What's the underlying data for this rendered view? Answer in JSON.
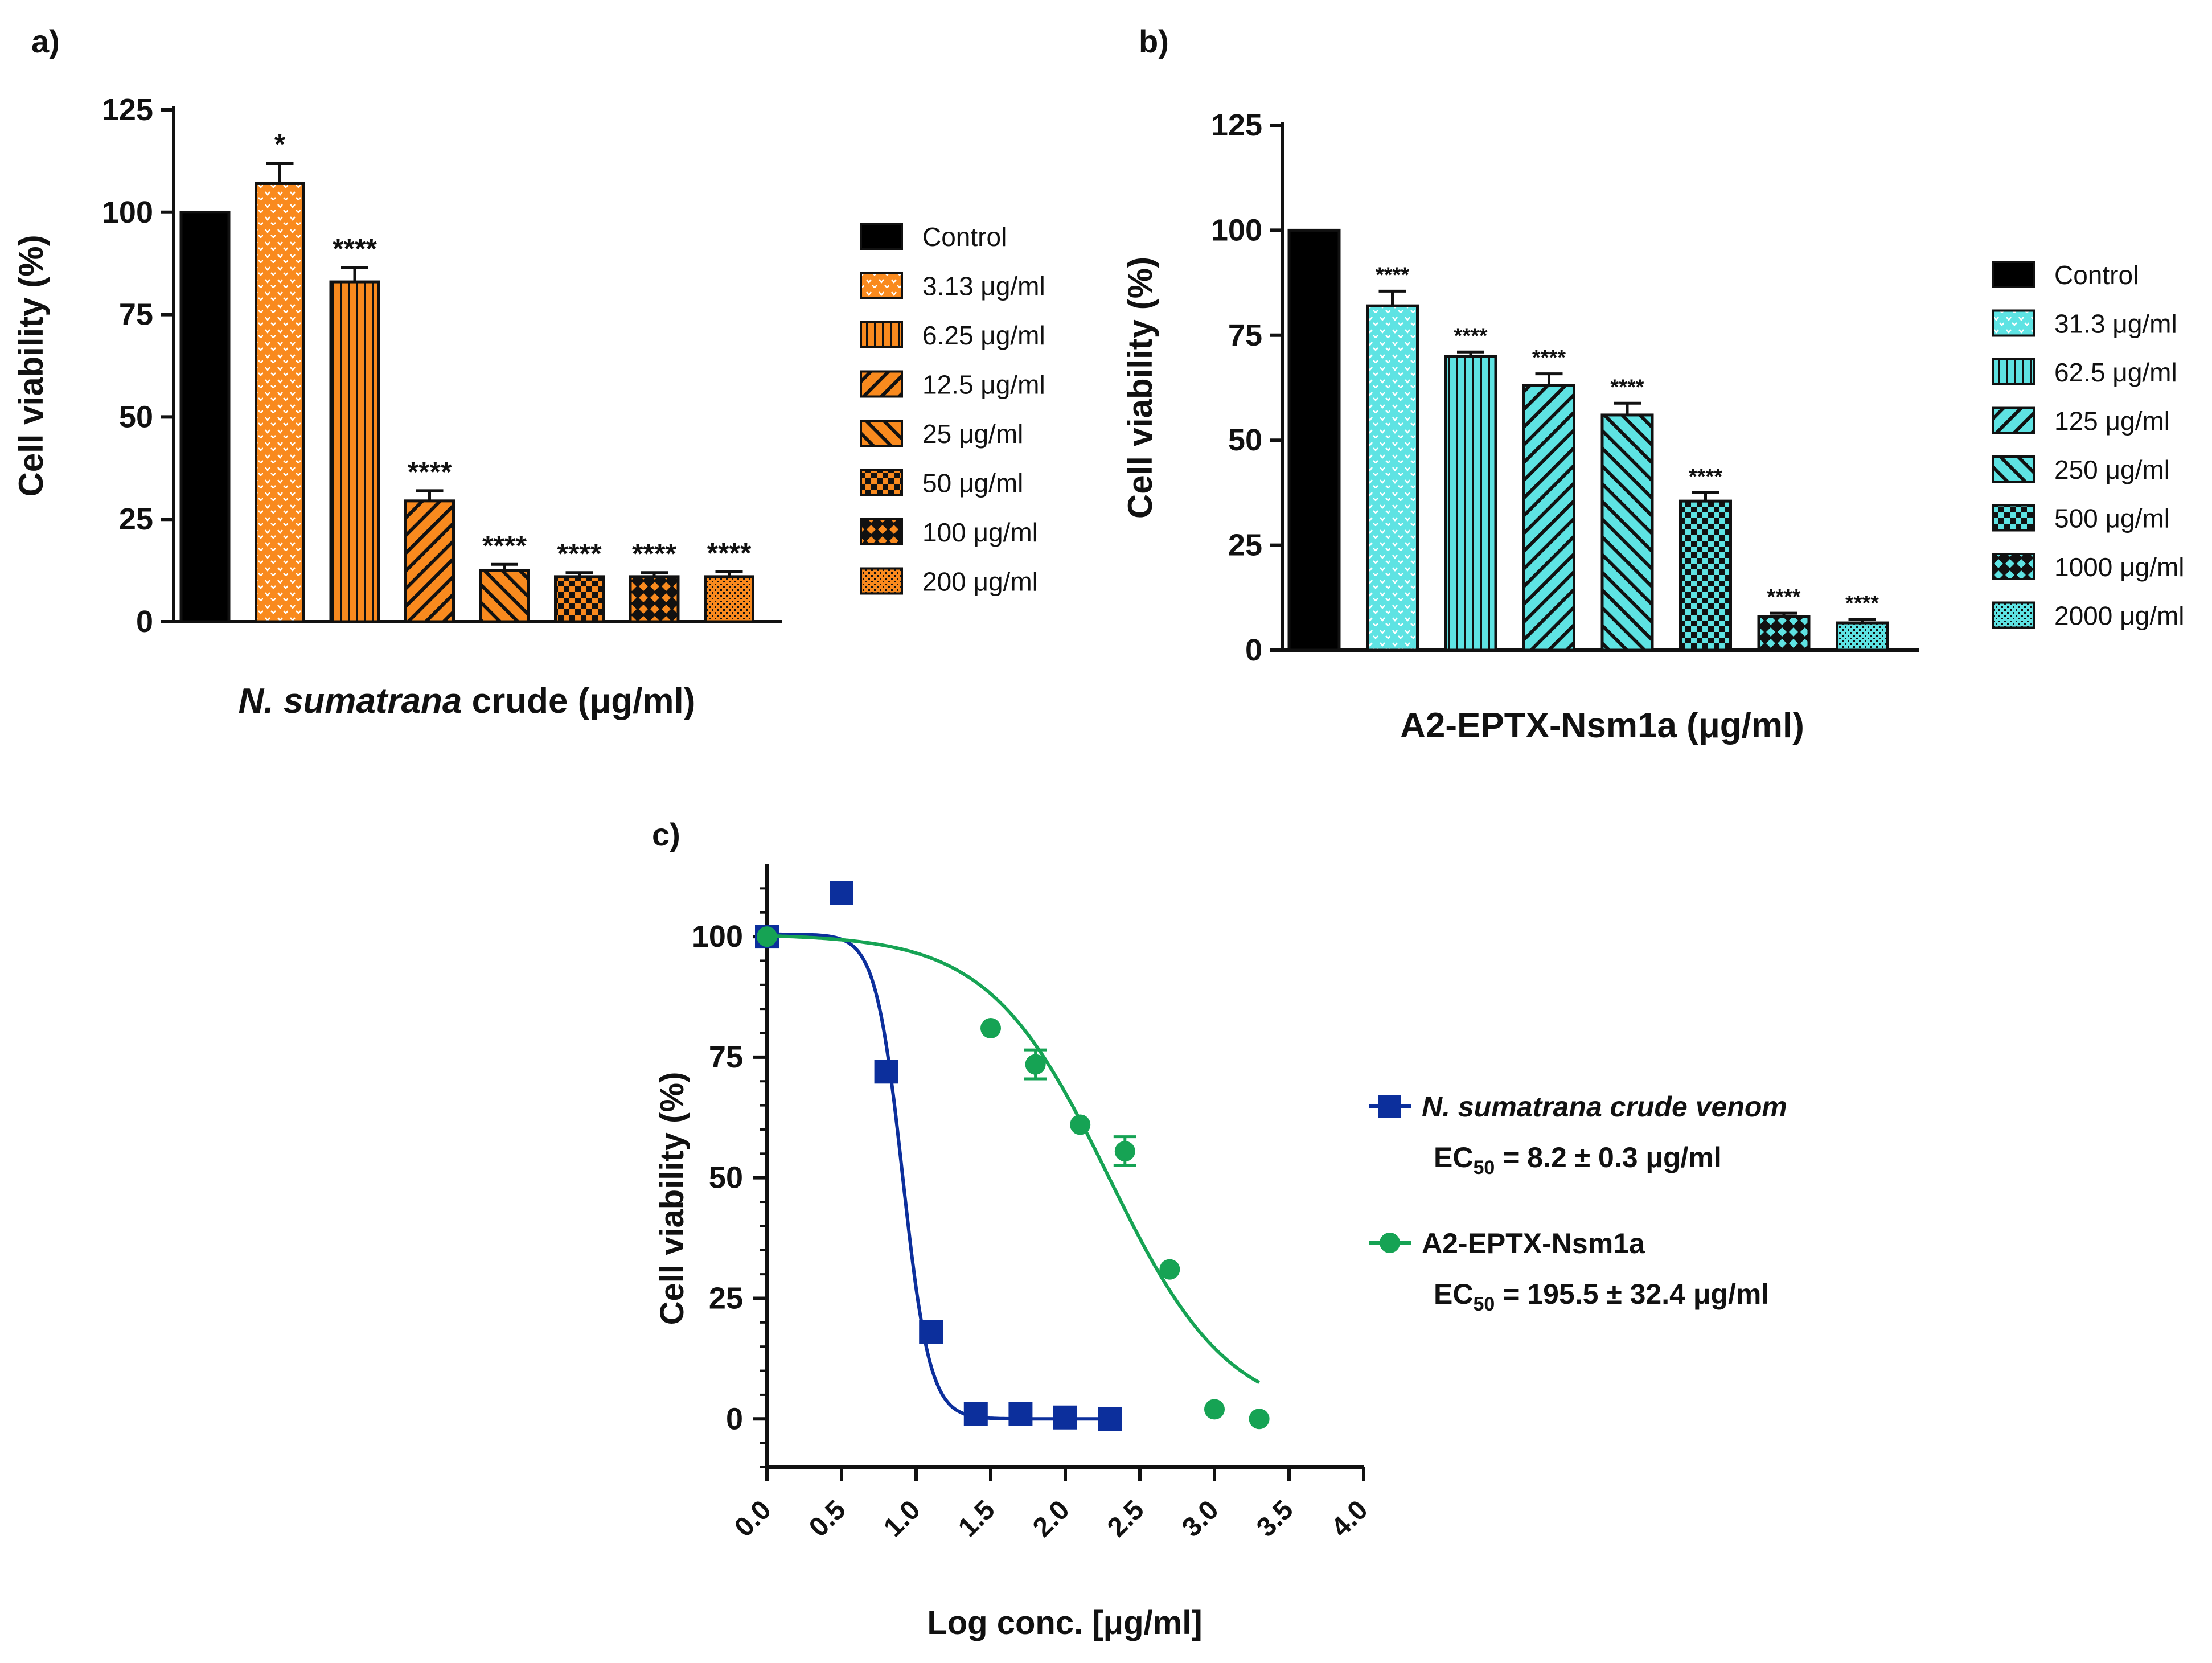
{
  "colors": {
    "control": "#000000",
    "crude": "#f98a1e",
    "toxin": "#5ee3e3",
    "blue": "#0c2f9c",
    "green": "#16a354",
    "text": "#111111"
  },
  "chart_data": [
    {
      "type": "bar",
      "panel_label": "a)",
      "ylabel": "Cell viability (%)",
      "xlabel_italic": "N. sumatrana",
      "xlabel_rest": " crude (μg/ml)",
      "ylim": [
        0,
        125
      ],
      "yticks": [
        "0",
        "25",
        "50",
        "75",
        "100",
        "125"
      ],
      "categories": [
        "Control",
        "3.13 μg/ml",
        "6.25 μg/ml",
        "12.5 μg/ml",
        "25 μg/ml",
        "50 μg/ml",
        "100 μg/ml",
        "200 μg/ml"
      ],
      "values": [
        100,
        107,
        83,
        29.5,
        12.5,
        11,
        11,
        11
      ],
      "errors": [
        0,
        5,
        3.5,
        2.5,
        1.5,
        1,
        1,
        1.2
      ],
      "significance": [
        "",
        "*",
        "****",
        "****",
        "****",
        "****",
        "****",
        "****"
      ],
      "patterns": [
        "solid",
        "dots",
        "vlines",
        "diag-down",
        "diag-up",
        "checker",
        "cross",
        "dense"
      ]
    },
    {
      "type": "bar",
      "panel_label": "b)",
      "ylabel": "Cell viability (%)",
      "xlabel_italic": "",
      "xlabel_rest": "A2-EPTX-Nsm1a (μg/ml)",
      "ylim": [
        0,
        125
      ],
      "yticks": [
        "0",
        "25",
        "50",
        "75",
        "100",
        "125"
      ],
      "categories": [
        "Control",
        "31.3 μg/ml",
        "62.5 μg/ml",
        "125 μg/ml",
        "250 μg/ml",
        "500 μg/ml",
        "1000 μg/ml",
        "2000 μg/ml"
      ],
      "values": [
        100,
        82,
        70,
        63,
        56,
        35.5,
        8,
        6.5
      ],
      "errors": [
        0,
        3.5,
        1,
        2.8,
        2.8,
        2,
        0.8,
        0.8
      ],
      "significance": [
        "",
        "****",
        "****",
        "****",
        "****",
        "****",
        "****",
        "****"
      ],
      "patterns": [
        "solid",
        "dots",
        "vlines",
        "diag-down",
        "diag-up",
        "checker",
        "cross",
        "dense"
      ]
    },
    {
      "type": "scatter",
      "panel_label": "c)",
      "ylabel": "Cell viability (%)",
      "xlabel": "Log conc. [μg/ml]",
      "xlim": [
        0,
        4
      ],
      "ylim": [
        -10,
        115
      ],
      "xticks": [
        "0.0",
        "0.5",
        "1.0",
        "1.5",
        "2.0",
        "2.5",
        "3.0",
        "3.5",
        "4.0"
      ],
      "yticks": [
        "0",
        "25",
        "50",
        "75",
        "100"
      ],
      "series": [
        {
          "name": "N. sumatrana crude venom",
          "ec50_prefix": "EC",
          "ec50_sub": "50",
          "ec50_value": " = 8.2 ± 0.3 μg/ml",
          "marker": "square",
          "x": [
            0.0,
            0.5,
            0.8,
            1.1,
            1.4,
            1.7,
            2.0,
            2.3
          ],
          "y": [
            100,
            109,
            72,
            18,
            1,
            1,
            0.3,
            0
          ],
          "err": [
            0,
            2,
            0,
            0,
            0,
            0,
            0,
            0
          ],
          "fit": {
            "top": 100.5,
            "bottom": 0,
            "logec50": 0.91,
            "hill": 4.8,
            "xmin": 0,
            "xmax": 2.3
          }
        },
        {
          "name": "A2-EPTX-Nsm1a",
          "ec50_prefix": "EC",
          "ec50_sub": "50",
          "ec50_value": " = 195.5 ± 32.4 μg/ml",
          "marker": "circle",
          "x": [
            0.0,
            1.5,
            1.8,
            2.1,
            2.4,
            2.7,
            3.0,
            3.3
          ],
          "y": [
            100,
            81,
            73.5,
            61,
            55.5,
            31,
            2,
            0
          ],
          "err": [
            0,
            0,
            3,
            0,
            3,
            0,
            0,
            0
          ],
          "fit": {
            "top": 100.5,
            "bottom": 0,
            "logec50": 2.29,
            "hill": 1.08,
            "xmin": 0,
            "xmax": 3.3
          }
        }
      ]
    }
  ]
}
